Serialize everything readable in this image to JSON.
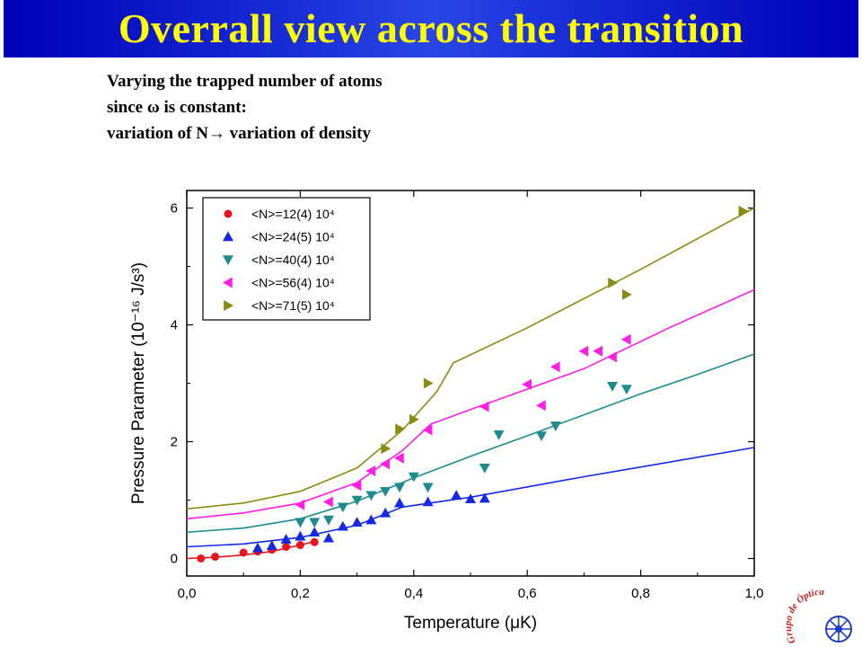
{
  "title": "Overrall view across the transition",
  "notes": [
    "Varying the trapped number of atoms",
    "since ω is constant:",
    "variation of N→ variation of density"
  ],
  "logo_text": "Grupo de Óptica",
  "colors": {
    "title_bg": "#1a2fd8",
    "title_text": "#ffff00"
  },
  "chart_data": {
    "type": "scatter",
    "xlabel": "Temperature (μK)",
    "ylabel": "Pressure Parameter (10⁻¹⁶ J/s³)",
    "xlim": [
      0.0,
      1.0
    ],
    "ylim": [
      -0.3,
      6.3
    ],
    "xticks": [
      0.0,
      0.2,
      0.4,
      0.6,
      0.8,
      1.0
    ],
    "xtick_labels": [
      "0,0",
      "0,2",
      "0,4",
      "0,6",
      "0,8",
      "1,0"
    ],
    "yticks": [
      0,
      2,
      4,
      6
    ],
    "ytick_labels": [
      "0",
      "2",
      "4",
      "6"
    ],
    "legend_position": "top-left",
    "series": [
      {
        "name": "<N>=12(4) 10⁴",
        "color": "#e8141e",
        "marker": "circle",
        "points": [
          [
            0.025,
            0.0
          ],
          [
            0.05,
            0.03
          ],
          [
            0.1,
            0.1
          ],
          [
            0.125,
            0.12
          ],
          [
            0.15,
            0.15
          ],
          [
            0.175,
            0.2
          ],
          [
            0.2,
            0.23
          ],
          [
            0.225,
            0.28
          ]
        ],
        "fit": [
          [
            0.0,
            0.0
          ],
          [
            0.05,
            0.02
          ],
          [
            0.1,
            0.06
          ],
          [
            0.15,
            0.12
          ],
          [
            0.2,
            0.23
          ],
          [
            0.225,
            0.29
          ]
        ]
      },
      {
        "name": "<N>=24(5) 10⁴",
        "color": "#1428e6",
        "marker": "triangle-up",
        "points": [
          [
            0.125,
            0.18
          ],
          [
            0.15,
            0.22
          ],
          [
            0.175,
            0.33
          ],
          [
            0.2,
            0.38
          ],
          [
            0.225,
            0.45
          ],
          [
            0.25,
            0.35
          ],
          [
            0.275,
            0.55
          ],
          [
            0.3,
            0.62
          ],
          [
            0.325,
            0.66
          ],
          [
            0.35,
            0.78
          ],
          [
            0.375,
            0.95
          ],
          [
            0.425,
            0.97
          ],
          [
            0.475,
            1.08
          ],
          [
            0.5,
            1.02
          ],
          [
            0.525,
            1.03
          ]
        ],
        "fit": [
          [
            0.0,
            0.2
          ],
          [
            0.1,
            0.25
          ],
          [
            0.2,
            0.36
          ],
          [
            0.3,
            0.57
          ],
          [
            0.38,
            0.88
          ],
          [
            0.5,
            1.05
          ],
          [
            0.7,
            1.4
          ],
          [
            0.85,
            1.65
          ],
          [
            1.0,
            1.9
          ]
        ]
      },
      {
        "name": "<N>=40(4) 10⁴",
        "color": "#1e8c8c",
        "marker": "triangle-down",
        "points": [
          [
            0.2,
            0.62
          ],
          [
            0.225,
            0.62
          ],
          [
            0.25,
            0.66
          ],
          [
            0.275,
            0.88
          ],
          [
            0.3,
            1.0
          ],
          [
            0.325,
            1.08
          ],
          [
            0.35,
            1.15
          ],
          [
            0.375,
            1.22
          ],
          [
            0.4,
            1.4
          ],
          [
            0.425,
            1.22
          ],
          [
            0.525,
            1.55
          ],
          [
            0.55,
            2.12
          ],
          [
            0.625,
            2.1
          ],
          [
            0.65,
            2.27
          ],
          [
            0.75,
            2.95
          ],
          [
            0.775,
            2.9
          ]
        ],
        "fit": [
          [
            0.0,
            0.45
          ],
          [
            0.1,
            0.52
          ],
          [
            0.2,
            0.68
          ],
          [
            0.3,
            0.98
          ],
          [
            0.4,
            1.38
          ],
          [
            0.5,
            1.75
          ],
          [
            0.6,
            2.1
          ],
          [
            0.7,
            2.46
          ],
          [
            0.8,
            2.82
          ],
          [
            0.9,
            3.15
          ],
          [
            1.0,
            3.5
          ]
        ]
      },
      {
        "name": "<N>=56(4) 10⁴",
        "color": "#ff1ee6",
        "marker": "triangle-left",
        "points": [
          [
            0.2,
            0.92
          ],
          [
            0.25,
            0.97
          ],
          [
            0.3,
            1.25
          ],
          [
            0.325,
            1.5
          ],
          [
            0.35,
            1.62
          ],
          [
            0.375,
            1.72
          ],
          [
            0.425,
            2.2
          ],
          [
            0.525,
            2.6
          ],
          [
            0.6,
            2.98
          ],
          [
            0.625,
            2.62
          ],
          [
            0.65,
            3.28
          ],
          [
            0.7,
            3.55
          ],
          [
            0.725,
            3.55
          ],
          [
            0.75,
            3.45
          ],
          [
            0.775,
            3.75
          ]
        ],
        "fit": [
          [
            0.0,
            0.68
          ],
          [
            0.1,
            0.78
          ],
          [
            0.2,
            0.95
          ],
          [
            0.3,
            1.3
          ],
          [
            0.38,
            1.85
          ],
          [
            0.43,
            2.3
          ],
          [
            0.5,
            2.55
          ],
          [
            0.7,
            3.25
          ],
          [
            0.85,
            3.95
          ],
          [
            1.0,
            4.6
          ]
        ]
      },
      {
        "name": "<N>=71(5) 10⁴",
        "color": "#8c8c14",
        "marker": "triangle-right",
        "points": [
          [
            0.35,
            1.88
          ],
          [
            0.375,
            2.22
          ],
          [
            0.4,
            2.38
          ],
          [
            0.425,
            3.0
          ],
          [
            0.75,
            4.72
          ],
          [
            0.775,
            4.52
          ],
          [
            0.98,
            5.95
          ]
        ],
        "fit": [
          [
            0.0,
            0.85
          ],
          [
            0.1,
            0.95
          ],
          [
            0.2,
            1.15
          ],
          [
            0.3,
            1.55
          ],
          [
            0.38,
            2.2
          ],
          [
            0.44,
            2.85
          ],
          [
            0.47,
            3.35
          ],
          [
            0.6,
            3.95
          ],
          [
            0.8,
            4.95
          ],
          [
            1.0,
            6.0
          ]
        ]
      }
    ]
  }
}
